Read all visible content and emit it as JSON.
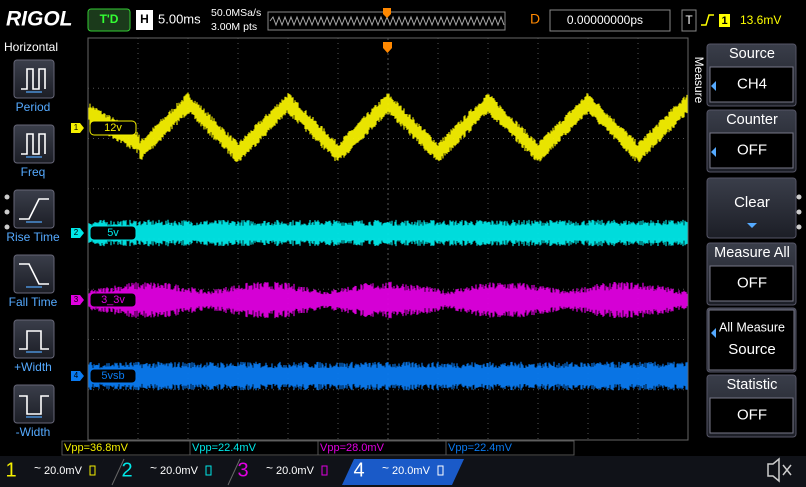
{
  "header": {
    "brand": "RIGOL",
    "status": "T'D",
    "timebase_label": "H",
    "timebase": "5.00ms",
    "sample_rate": "50.0MSa/s",
    "points": "3.00M pts",
    "delay_label": "D",
    "delay": "0.00000000ps",
    "trigger_label": "T",
    "trigger_channel": "1",
    "trigger_level": "13.6mV"
  },
  "left_menu": {
    "title": "Horizontal",
    "items": [
      "Period",
      "Freq",
      "Rise Time",
      "Fall Time",
      "+Width",
      "-Width"
    ]
  },
  "channels": [
    {
      "number": "1",
      "label": "12v",
      "coupling": "~",
      "scale": "20.0mV"
    },
    {
      "number": "2",
      "label": "5v",
      "coupling": "~",
      "scale": "20.0mV"
    },
    {
      "number": "3",
      "label": "3_3v",
      "coupling": "~",
      "scale": "20.0mV"
    },
    {
      "number": "4",
      "label": "5vsb",
      "coupling": "~",
      "scale": "20.0mV"
    }
  ],
  "measurements": [
    "Vpp=36.8mV",
    "Vpp=22.4mV",
    "Vpp=28.0mV",
    "Vpp=22.4mV"
  ],
  "right_menu": {
    "title": "Measure",
    "items": [
      {
        "label": "Source",
        "value": "CH4"
      },
      {
        "label": "Counter",
        "value": "OFF"
      },
      {
        "label": "Clear"
      },
      {
        "label": "Measure All",
        "value": "OFF"
      },
      {
        "label": "All Measure",
        "value": "Source"
      },
      {
        "label": "Statistic",
        "value": "OFF"
      }
    ]
  }
}
